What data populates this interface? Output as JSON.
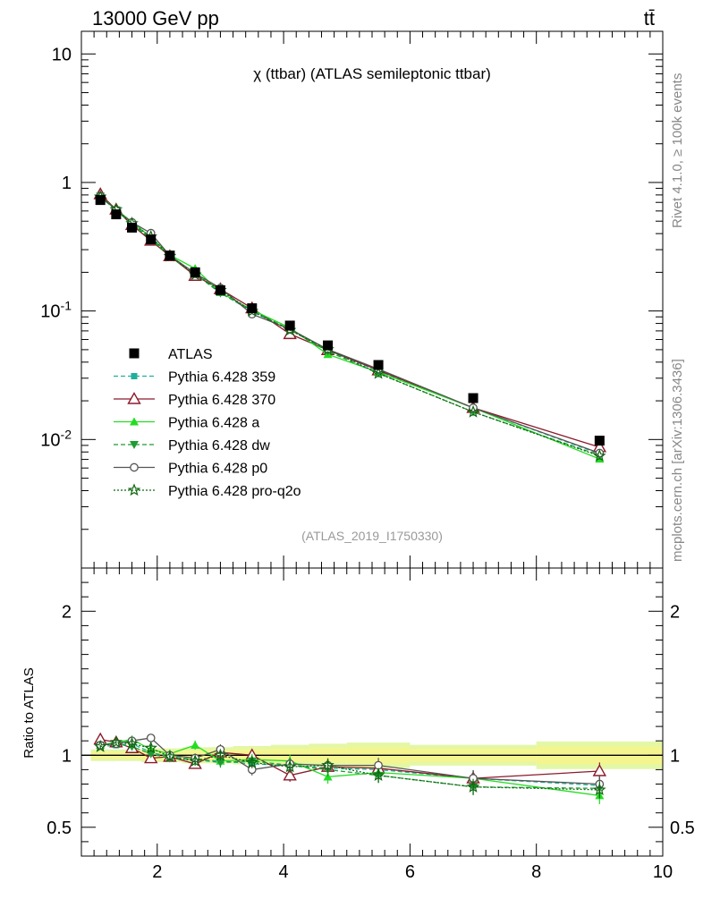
{
  "header": {
    "energy_label": "13000 GeV pp",
    "process_label": "tt̄"
  },
  "side_labels": {
    "rivet": "Rivet 4.1.0, ≥ 100k events",
    "mcplots": "mcplots.cern.ch [arXiv:1306.3436]"
  },
  "watermark": "(ATLAS_2019_I1750330)",
  "chart_data": {
    "type": "line",
    "title": "χ (ttbar) (ATLAS semileptonic ttbar)",
    "xlabel": "",
    "ylabel_main": "",
    "ylabel_ratio": "Ratio to ATLAS",
    "xlim": [
      0.8,
      10.0
    ],
    "ylim_main": [
      0.001,
      15
    ],
    "yscale_main": "log",
    "ylim_ratio": [
      0.3,
      2.3
    ],
    "x_ticks": [
      "2",
      "4",
      "6",
      "8",
      "10"
    ],
    "y_ticks_main": [
      {
        "base": "10",
        "exp": "-2",
        "value": 0.01
      },
      {
        "base": "10",
        "exp": "-1",
        "value": 0.1
      },
      {
        "base": "1",
        "exp": "",
        "value": 1
      },
      {
        "base": "10",
        "exp": "",
        "value": 10
      }
    ],
    "y_ticks_ratio": [
      "0.5",
      "1",
      "2"
    ],
    "x": [
      1.1,
      1.35,
      1.6,
      1.9,
      2.2,
      2.6,
      3.0,
      3.5,
      4.1,
      4.7,
      5.5,
      7.0,
      9.0
    ],
    "data": {
      "name": "ATLAS",
      "values": [
        0.73,
        0.565,
        0.445,
        0.36,
        0.27,
        0.2,
        0.145,
        0.105,
        0.077,
        0.054,
        0.038,
        0.021,
        0.0098
      ]
    },
    "series": [
      {
        "name": "Pythia 6.428 359",
        "color": "#1fb09a",
        "dash": "5,3",
        "marker": "square",
        "ratio": [
          1.06,
          1.07,
          1.08,
          1.02,
          0.99,
          0.97,
          0.96,
          0.94,
          0.93,
          0.91,
          0.9,
          0.84,
          0.79
        ]
      },
      {
        "name": "Pythia 6.428 370",
        "color": "#8b1a2b",
        "dash": "",
        "marker": "triangle-open",
        "ratio": [
          1.11,
          1.09,
          1.05,
          0.98,
          0.99,
          0.94,
          1.02,
          1.0,
          0.86,
          0.92,
          0.91,
          0.84,
          0.89
        ]
      },
      {
        "name": "Pythia 6.428 a",
        "color": "#22dd22",
        "dash": "",
        "marker": "triangle",
        "ratio": [
          1.07,
          1.09,
          1.11,
          1.04,
          1.01,
          1.07,
          0.96,
          0.97,
          0.96,
          0.85,
          0.88,
          0.84,
          0.72
        ]
      },
      {
        "name": "Pythia 6.428 dw",
        "color": "#1e9c32",
        "dash": "5,3",
        "marker": "triangle-down",
        "ratio": [
          1.07,
          1.08,
          1.06,
          1.01,
          0.98,
          0.97,
          0.95,
          0.96,
          0.93,
          0.9,
          0.86,
          0.78,
          0.77
        ]
      },
      {
        "name": "Pythia 6.428 p0",
        "color": "#555555",
        "dash": "",
        "marker": "circle-open",
        "ratio": [
          1.07,
          1.08,
          1.1,
          1.12,
          1.0,
          0.98,
          1.04,
          0.9,
          0.94,
          0.93,
          0.93,
          0.84,
          0.8
        ]
      },
      {
        "name": "Pythia 6.428 pro-q2o",
        "color": "#116611",
        "dash": "2,2",
        "marker": "star",
        "ratio": [
          1.06,
          1.09,
          1.08,
          1.05,
          0.99,
          0.96,
          1.0,
          0.95,
          0.92,
          0.93,
          0.86,
          0.78,
          0.76
        ]
      }
    ],
    "legend_position": "lower-left"
  },
  "colors": {
    "data": "#000000",
    "band_inner": "#f5f590",
    "band_outer": "#e3f7a5"
  }
}
